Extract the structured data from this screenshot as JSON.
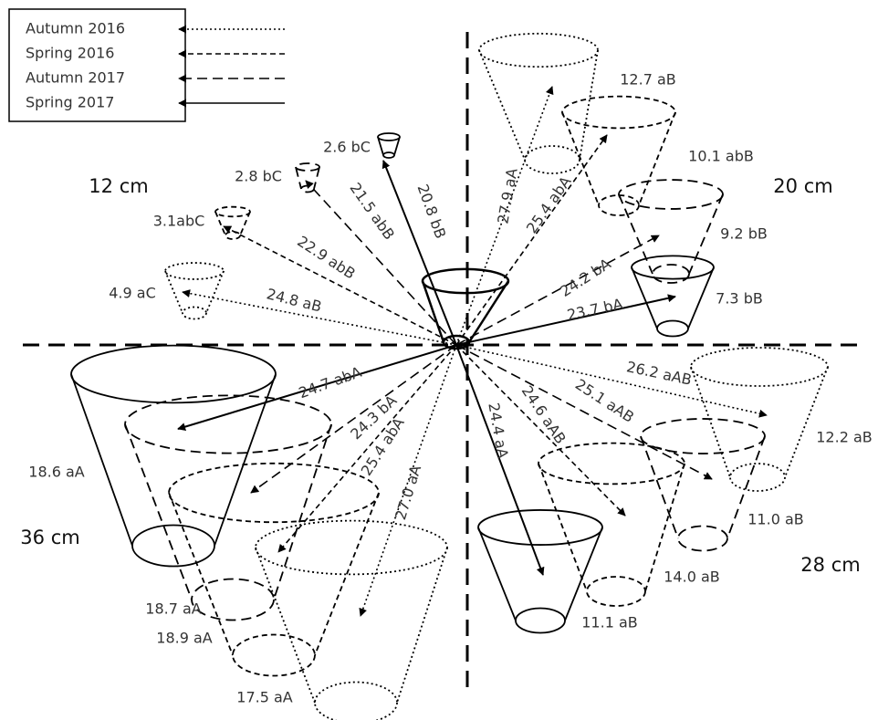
{
  "legend": {
    "items": [
      "Autumn 2016",
      "Spring 2016",
      "Autumn 2017",
      "Spring 2017"
    ]
  },
  "quadrants": [
    {
      "label": "12 cm",
      "items": [
        {
          "cone_label": "2.6 bC",
          "arrow_label": "20.8 bB"
        },
        {
          "cone_label": "2.8 bC",
          "arrow_label": "21.5 abB"
        },
        {
          "cone_label": "3.1abC",
          "arrow_label": "22.9 abB"
        },
        {
          "cone_label": "4.9 aC",
          "arrow_label": "24.8 aB"
        }
      ]
    },
    {
      "label": "20 cm",
      "items": [
        {
          "cone_label": "12.7 aB",
          "arrow_label": "27.9 aA"
        },
        {
          "cone_label": "10.1 abB",
          "arrow_label": "25.4 abA"
        },
        {
          "cone_label": "9.2 bB",
          "arrow_label": "24.2 bA"
        },
        {
          "cone_label": "7.3 bB",
          "arrow_label": "23.7 bA"
        }
      ]
    },
    {
      "label": "36 cm",
      "items": [
        {
          "cone_label": "18.6 aA",
          "arrow_label": "24.7 abA"
        },
        {
          "cone_label": "18.7 aA",
          "arrow_label": "24.3 bA"
        },
        {
          "cone_label": "18.9 aA",
          "arrow_label": "25.4 abA"
        },
        {
          "cone_label": "17.5 aA",
          "arrow_label": "27.0 aA"
        }
      ]
    },
    {
      "label": "28 cm",
      "items": [
        {
          "cone_label": "11.1 aB",
          "arrow_label": "24.4 aA"
        },
        {
          "cone_label": "14.0 aB",
          "arrow_label": "24.6 aAB"
        },
        {
          "cone_label": "11.0 aB",
          "arrow_label": "25.1 aAB"
        },
        {
          "cone_label": "12.2 aB",
          "arrow_label": "26.2 aAB"
        }
      ]
    }
  ]
}
